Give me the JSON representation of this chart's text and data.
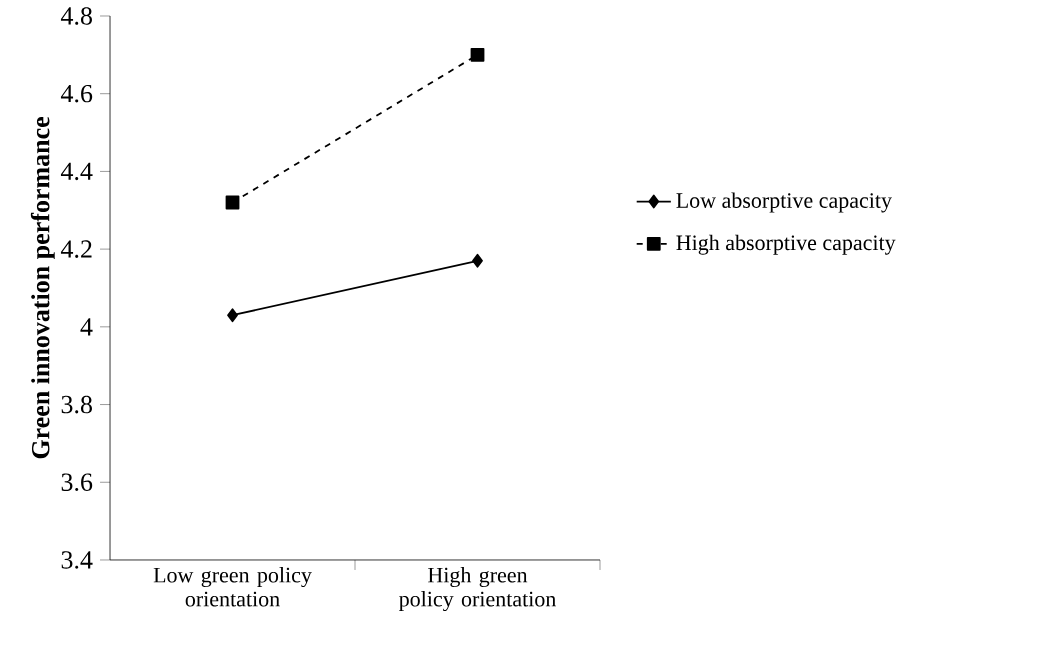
{
  "chart_data": {
    "type": "line",
    "ylabel": "Green innovation performance",
    "categories": [
      "Low green policy orientation",
      "High green policy orientation"
    ],
    "series": [
      {
        "name": "Low absorptive capacity",
        "color": "#000000",
        "values": [
          4.03,
          4.17
        ],
        "marker": "diamond",
        "line_style": "solid"
      },
      {
        "name": "High absorptive capacity",
        "color": "#000000",
        "values": [
          4.32,
          4.7
        ],
        "marker": "square",
        "line_style": "dashed"
      }
    ],
    "ylim": [
      3.4,
      4.8
    ],
    "yticks": [
      3.4,
      3.6,
      3.8,
      4,
      4.2,
      4.4,
      4.6,
      4.8
    ],
    "grid": false,
    "legend": "right"
  }
}
